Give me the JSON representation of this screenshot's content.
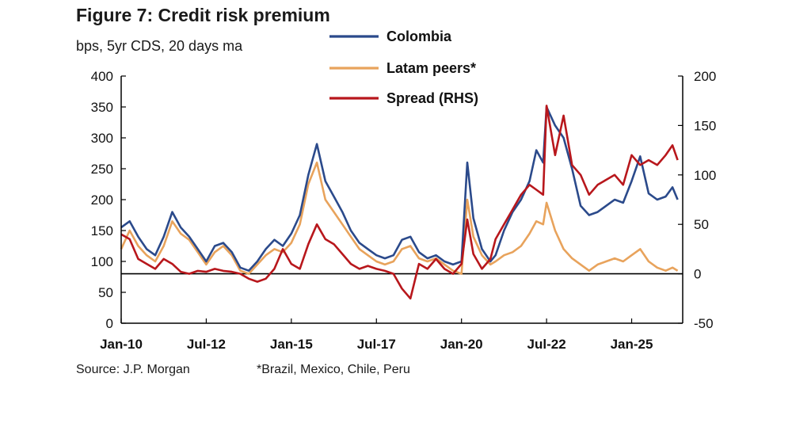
{
  "header": {
    "title": "Figure 7: Credit risk premium",
    "subtitle": "bps, 5yr CDS, 20 days ma"
  },
  "footer": {
    "source": "Source: J.P. Morgan",
    "footnote": "*Brazil, Mexico, Chile, Peru"
  },
  "colors": {
    "colombia": "#2b4a8b",
    "latam": "#e8a35c",
    "spread": "#b8171c",
    "axis": "#000000"
  },
  "chart_data": {
    "type": "line",
    "title": "Figure 7: Credit risk premium",
    "subtitle": "bps, 5yr CDS, 20 days ma",
    "xlabel": "",
    "ylabel": "",
    "x_tick_labels": [
      "Jan-10",
      "Jul-12",
      "Jan-15",
      "Jul-17",
      "Jan-20",
      "Jul-22",
      "Jan-25"
    ],
    "x_tick_years": [
      2010.0,
      2012.5,
      2015.0,
      2017.5,
      2020.0,
      2022.5,
      2025.0
    ],
    "xlim": [
      2010.0,
      2026.5
    ],
    "ylim_left": [
      0,
      400
    ],
    "yticks_left": [
      0,
      50,
      100,
      150,
      200,
      250,
      300,
      350,
      400
    ],
    "ylim_right": [
      -50,
      200
    ],
    "yticks_right": [
      -50,
      0,
      50,
      100,
      150,
      200
    ],
    "legend_position": "top",
    "series": [
      {
        "name": "Colombia",
        "axis": "left",
        "x": [
          2010.0,
          2010.25,
          2010.5,
          2010.75,
          2011.0,
          2011.25,
          2011.5,
          2011.75,
          2012.0,
          2012.25,
          2012.5,
          2012.75,
          2013.0,
          2013.25,
          2013.5,
          2013.75,
          2014.0,
          2014.25,
          2014.5,
          2014.75,
          2015.0,
          2015.25,
          2015.5,
          2015.75,
          2016.0,
          2016.25,
          2016.5,
          2016.75,
          2017.0,
          2017.25,
          2017.5,
          2017.75,
          2018.0,
          2018.25,
          2018.5,
          2018.75,
          2019.0,
          2019.25,
          2019.5,
          2019.75,
          2020.0,
          2020.17,
          2020.35,
          2020.6,
          2020.85,
          2021.0,
          2021.25,
          2021.5,
          2021.75,
          2022.0,
          2022.2,
          2022.4,
          2022.5,
          2022.75,
          2023.0,
          2023.25,
          2023.5,
          2023.75,
          2024.0,
          2024.25,
          2024.5,
          2024.75,
          2025.0,
          2025.25,
          2025.5,
          2025.75,
          2026.0,
          2026.2,
          2026.35
        ],
        "values": [
          155,
          165,
          140,
          120,
          110,
          140,
          180,
          155,
          140,
          120,
          100,
          125,
          130,
          115,
          90,
          85,
          100,
          120,
          135,
          125,
          145,
          175,
          240,
          290,
          230,
          205,
          180,
          150,
          130,
          120,
          110,
          105,
          110,
          135,
          140,
          115,
          105,
          110,
          100,
          95,
          100,
          260,
          170,
          120,
          100,
          110,
          150,
          180,
          200,
          230,
          280,
          260,
          350,
          320,
          300,
          250,
          190,
          175,
          180,
          190,
          200,
          195,
          230,
          270,
          210,
          200,
          205,
          220,
          200
        ]
      },
      {
        "name": "Latam peers*",
        "axis": "left",
        "x": [
          2010.0,
          2010.25,
          2010.5,
          2010.75,
          2011.0,
          2011.25,
          2011.5,
          2011.75,
          2012.0,
          2012.25,
          2012.5,
          2012.75,
          2013.0,
          2013.25,
          2013.5,
          2013.75,
          2014.0,
          2014.25,
          2014.5,
          2014.75,
          2015.0,
          2015.25,
          2015.5,
          2015.75,
          2016.0,
          2016.25,
          2016.5,
          2016.75,
          2017.0,
          2017.25,
          2017.5,
          2017.75,
          2018.0,
          2018.25,
          2018.5,
          2018.75,
          2019.0,
          2019.25,
          2019.5,
          2019.75,
          2020.0,
          2020.17,
          2020.35,
          2020.6,
          2020.85,
          2021.0,
          2021.25,
          2021.5,
          2021.75,
          2022.0,
          2022.2,
          2022.4,
          2022.5,
          2022.75,
          2023.0,
          2023.25,
          2023.5,
          2023.75,
          2024.0,
          2024.25,
          2024.5,
          2024.75,
          2025.0,
          2025.25,
          2025.5,
          2025.75,
          2026.0,
          2026.2,
          2026.35
        ],
        "values": [
          120,
          150,
          125,
          110,
          100,
          125,
          165,
          145,
          135,
          115,
          95,
          115,
          125,
          110,
          85,
          80,
          95,
          110,
          120,
          115,
          130,
          160,
          225,
          260,
          200,
          180,
          160,
          140,
          120,
          110,
          100,
          95,
          100,
          120,
          125,
          105,
          100,
          105,
          95,
          85,
          80,
          200,
          140,
          110,
          95,
          100,
          110,
          115,
          125,
          145,
          165,
          160,
          195,
          150,
          120,
          105,
          95,
          85,
          95,
          100,
          105,
          100,
          110,
          120,
          100,
          90,
          85,
          90,
          85
        ]
      },
      {
        "name": "Spread (RHS)",
        "axis": "right",
        "x": [
          2010.0,
          2010.25,
          2010.5,
          2010.75,
          2011.0,
          2011.25,
          2011.5,
          2011.75,
          2012.0,
          2012.25,
          2012.5,
          2012.75,
          2013.0,
          2013.25,
          2013.5,
          2013.75,
          2014.0,
          2014.25,
          2014.5,
          2014.75,
          2015.0,
          2015.25,
          2015.5,
          2015.75,
          2016.0,
          2016.25,
          2016.5,
          2016.75,
          2017.0,
          2017.25,
          2017.5,
          2017.75,
          2018.0,
          2018.25,
          2018.5,
          2018.75,
          2019.0,
          2019.25,
          2019.5,
          2019.75,
          2020.0,
          2020.17,
          2020.35,
          2020.6,
          2020.85,
          2021.0,
          2021.25,
          2021.5,
          2021.75,
          2022.0,
          2022.2,
          2022.4,
          2022.5,
          2022.75,
          2023.0,
          2023.25,
          2023.5,
          2023.75,
          2024.0,
          2024.25,
          2024.5,
          2024.75,
          2025.0,
          2025.25,
          2025.5,
          2025.75,
          2026.0,
          2026.2,
          2026.35
        ],
        "values": [
          40,
          35,
          15,
          10,
          5,
          15,
          10,
          2,
          0,
          3,
          2,
          5,
          3,
          2,
          0,
          -5,
          -8,
          -5,
          5,
          25,
          10,
          5,
          30,
          50,
          35,
          30,
          20,
          10,
          5,
          8,
          5,
          3,
          0,
          -15,
          -25,
          10,
          5,
          15,
          5,
          0,
          10,
          55,
          20,
          5,
          15,
          35,
          50,
          65,
          80,
          90,
          85,
          80,
          170,
          120,
          160,
          110,
          100,
          80,
          90,
          95,
          100,
          90,
          120,
          110,
          115,
          110,
          120,
          130,
          115
        ]
      }
    ],
    "hline": {
      "axis": "right",
      "value": 0
    }
  }
}
